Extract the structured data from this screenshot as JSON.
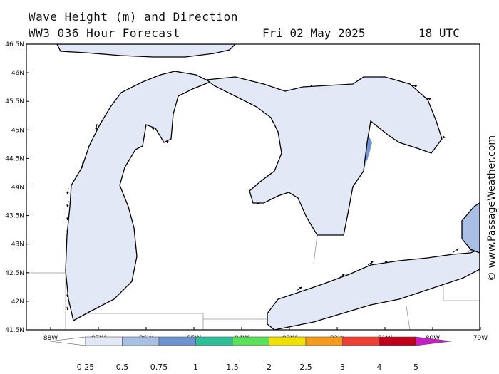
{
  "header": {
    "title_line1": "Wave Height (m) and Direction",
    "title_line2": "WW3 036 Hour Forecast",
    "date": "Fri 02 May 2025",
    "time": "18 UTC"
  },
  "map": {
    "lat_labels": [
      "46.5N",
      "46N",
      "45.5N",
      "45N",
      "44.5N",
      "44N",
      "43.5N",
      "43N",
      "42.5N",
      "42N",
      "41.5N"
    ],
    "lon_labels": [
      "88W",
      "87W",
      "86W",
      "85W",
      "84W",
      "83W",
      "82W",
      "81W",
      "80W",
      "79W"
    ],
    "credit": "© www.PassageWeather.com"
  },
  "colorbar": {
    "labels": [
      "0.25",
      "0.5",
      "0.75",
      "1",
      "1.5",
      "2",
      "2.5",
      "3",
      "4",
      "5"
    ],
    "colors": [
      "#ffffff",
      "#e2e8f5",
      "#a9bfe3",
      "#6e93d0",
      "#2ebf98",
      "#5be05b",
      "#f0e000",
      "#f49a1c",
      "#ee4035",
      "#c0001a",
      "#c71ec4"
    ]
  },
  "colors": {
    "water_light": "#e2e8f5",
    "water_mid": "#a9bfe3",
    "water_dark": "#6e93d0",
    "water_teal": "#2ebf98",
    "coast": "#000000",
    "border": "#999999"
  }
}
